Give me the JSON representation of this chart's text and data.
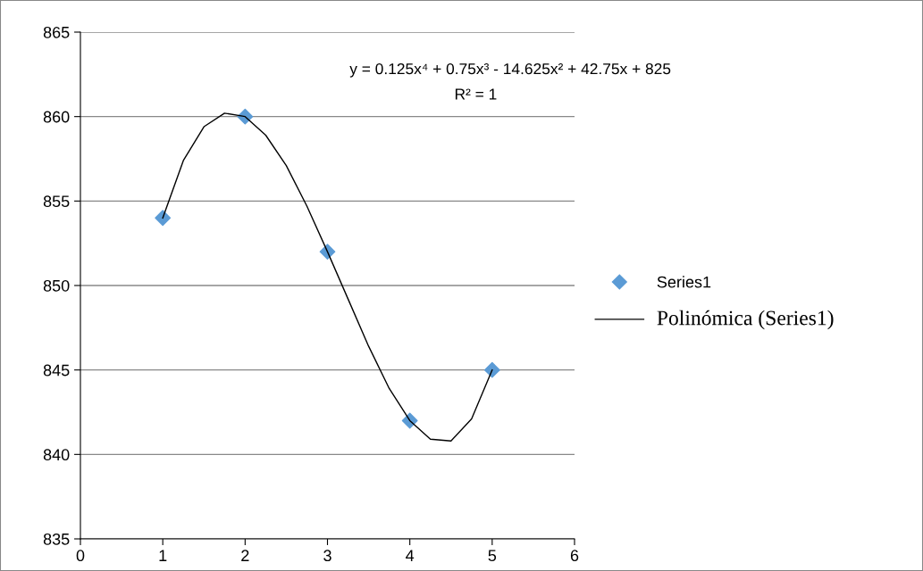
{
  "chart_data": {
    "type": "scatter",
    "x": [
      1,
      2,
      3,
      4,
      5
    ],
    "xlim": [
      0,
      6
    ],
    "xticks": [
      0,
      1,
      2,
      3,
      4,
      5,
      6
    ],
    "ylim": [
      835,
      865
    ],
    "yticks": [
      835,
      840,
      845,
      850,
      855,
      860,
      865
    ],
    "grid": "y",
    "legend": "right",
    "marker": "diamond",
    "series": [
      {
        "name": "Series1",
        "color": "#5b9bd5",
        "values": [
          854,
          860,
          852,
          842,
          845
        ]
      },
      {
        "name": "Polinómica (Series1)",
        "type": "line",
        "color": "#000000",
        "line_style": "solid",
        "marker": "none",
        "x": [
          1,
          1.25,
          1.5,
          1.75,
          2,
          2.25,
          2.5,
          2.75,
          3,
          3.25,
          3.5,
          3.75,
          4,
          4.25,
          4.5,
          4.75,
          5
        ],
        "values": [
          854,
          857.4,
          859.4,
          860.2,
          860,
          858.9,
          857.1,
          854.7,
          852,
          849.2,
          846.4,
          843.9,
          842,
          840.9,
          840.8,
          842.1,
          845
        ]
      }
    ],
    "annotations": [
      "y = 0.125x⁴ + 0.75x³ - 14.625x² + 42.75x + 825",
      "R² = 1"
    ]
  }
}
